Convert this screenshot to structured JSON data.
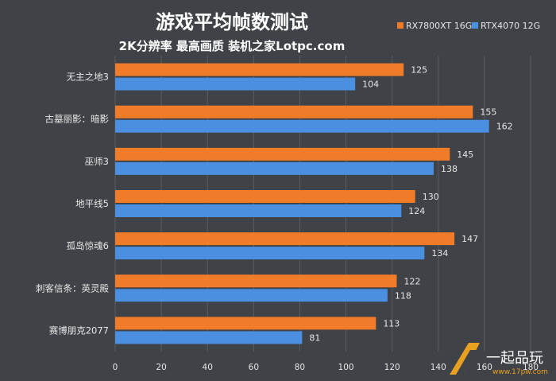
{
  "chart_data": {
    "type": "bar",
    "orientation": "horizontal",
    "title": "游戏平均帧数测试",
    "subtitle": "2K分辨率  最高画质  装机之家Lotpc.com",
    "categories": [
      "无主之地3",
      "古墓丽影：暗影",
      "巫师3",
      "地平线5",
      "孤岛惊魂6",
      "刺客信条：英灵殿",
      "赛博朋克2077"
    ],
    "series": [
      {
        "name": "RX7800XT 16G",
        "color": "#f07b28",
        "values": [
          125,
          155,
          145,
          130,
          147,
          122,
          113
        ]
      },
      {
        "name": "RTX4070 12G",
        "color": "#4a8fe0",
        "values": [
          104,
          162,
          138,
          124,
          134,
          118,
          81
        ]
      }
    ],
    "xlim": [
      0,
      180
    ],
    "xticks": [
      0,
      20,
      40,
      60,
      80,
      100,
      120,
      140,
      160,
      180
    ],
    "legend_position": "top-right",
    "grid": true
  },
  "watermark": {
    "site_name": "一起品玩",
    "url": "www.17pw.com"
  },
  "colors": {
    "background": "#3f4246",
    "grid": "#5a5d62",
    "text": "#e6e6e6",
    "title": "#ffffff"
  }
}
